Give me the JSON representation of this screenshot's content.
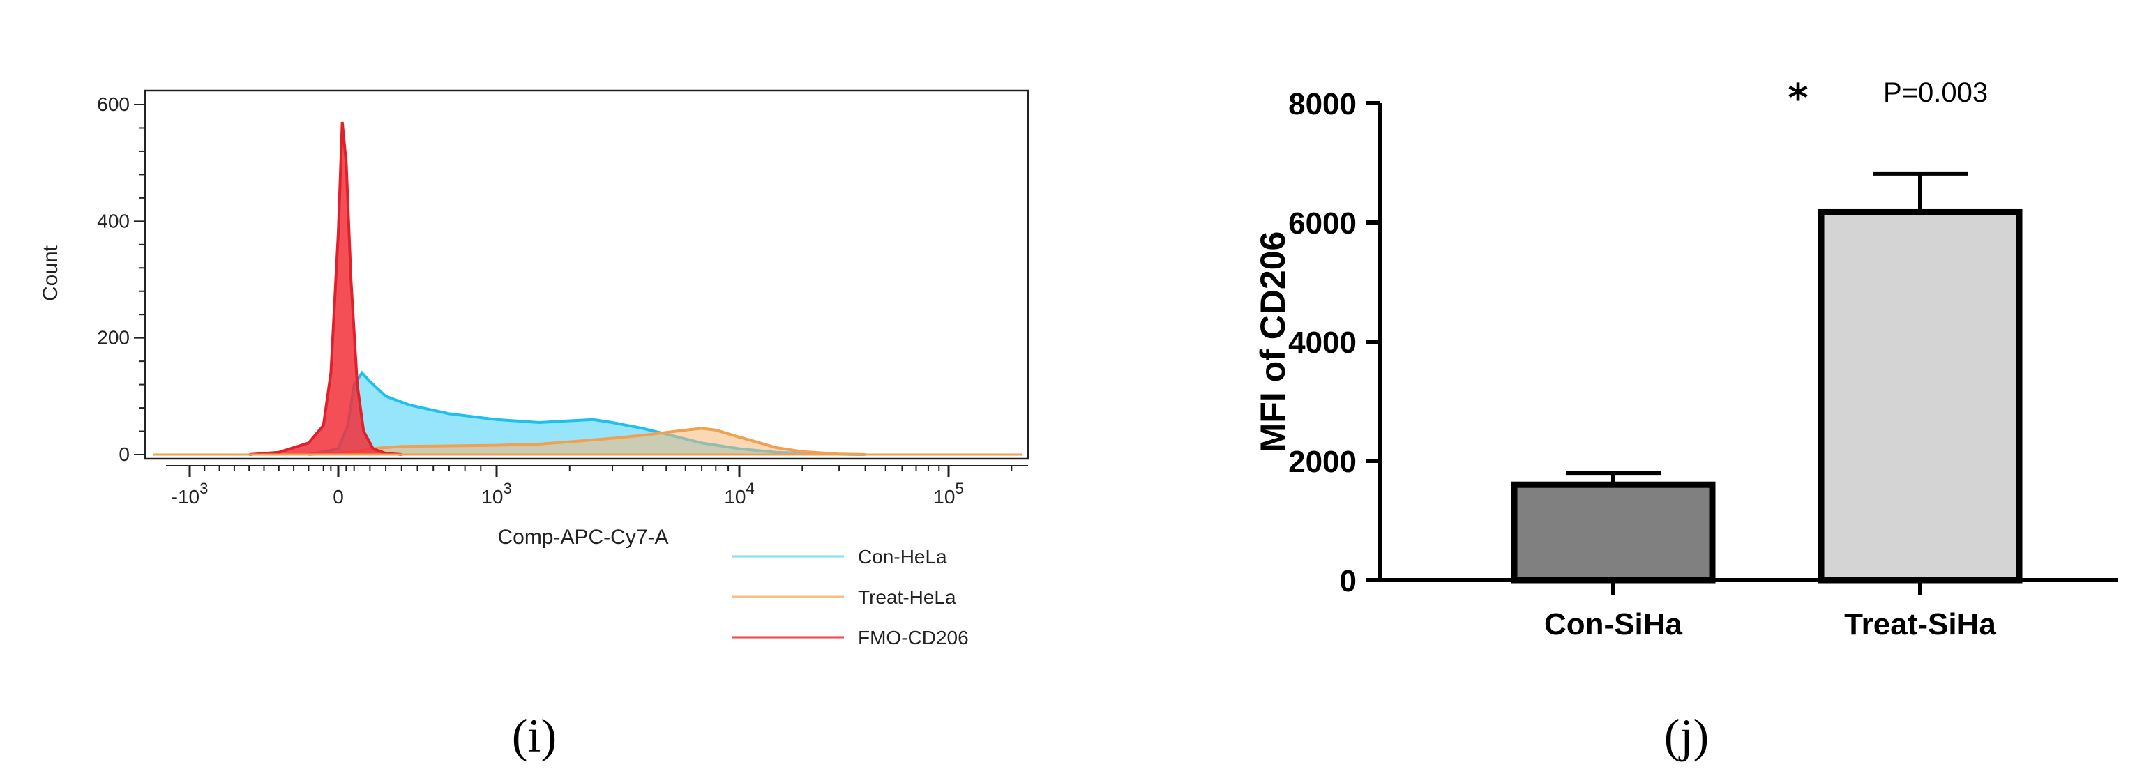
{
  "chart_data": [
    {
      "type": "area",
      "panel_label": "(i)",
      "xlabel": "Comp-APC-Cy7-A",
      "ylabel": "Count",
      "x_scale": "biexponential",
      "ylim": [
        0,
        620
      ],
      "yticks": [
        "0",
        "200",
        "400",
        "600"
      ],
      "xticks": [
        {
          "base": "-10",
          "exp": "3",
          "value": -1000
        },
        {
          "base": "0",
          "exp": "",
          "value": 0
        },
        {
          "base": "10",
          "exp": "3",
          "value": 1000
        },
        {
          "base": "10",
          "exp": "4",
          "value": 10000
        },
        {
          "base": "10",
          "exp": "5",
          "value": 100000
        }
      ],
      "legend_position": "bottom-right",
      "series": [
        {
          "name": "Con-HeLa",
          "line_color": "#1ec0f0",
          "fill_color": "#3fd0f8",
          "x": [
            -200,
            0,
            60,
            100,
            150,
            200,
            300,
            450,
            700,
            1000,
            1500,
            2000,
            2500,
            3000,
            4000,
            5000,
            7000,
            10000,
            15000,
            25000,
            40000
          ],
          "y": [
            0,
            10,
            50,
            120,
            140,
            125,
            100,
            85,
            70,
            60,
            55,
            58,
            60,
            55,
            45,
            35,
            20,
            10,
            4,
            1,
            0
          ]
        },
        {
          "name": "Treat-HeLa",
          "line_color": "#f0a050",
          "fill_color": "#f5b87a",
          "x": [
            -200,
            0,
            100,
            200,
            400,
            700,
            1000,
            1500,
            2000,
            3000,
            4000,
            5000,
            6000,
            7000,
            8000,
            10000,
            12000,
            15000,
            20000,
            30000,
            40000
          ],
          "y": [
            0,
            2,
            5,
            10,
            14,
            15,
            16,
            18,
            22,
            28,
            33,
            38,
            42,
            45,
            42,
            30,
            22,
            12,
            5,
            1,
            0
          ]
        },
        {
          "name": "FMO-CD206",
          "line_color": "#e0202a",
          "fill_color": "#f2303a",
          "x": [
            -600,
            -400,
            -200,
            -100,
            -50,
            0,
            25,
            50,
            80,
            120,
            160,
            220,
            300,
            400
          ],
          "y": [
            0,
            4,
            20,
            50,
            140,
            380,
            570,
            500,
            300,
            120,
            40,
            10,
            2,
            0
          ]
        }
      ]
    },
    {
      "type": "bar",
      "panel_label": "(j)",
      "categories": [
        "Con-SiHa",
        "Treat-SiHa"
      ],
      "values": [
        1600,
        6170
      ],
      "error": [
        200,
        650
      ],
      "bar_colors": [
        "#808080",
        "#d4d4d4"
      ],
      "ylabel": "MFI of CD206",
      "ylim": [
        0,
        8000
      ],
      "yticks": [
        "0",
        "2000",
        "4000",
        "6000",
        "8000"
      ],
      "significance": {
        "marker": "*",
        "text": "P=0.003"
      }
    }
  ]
}
